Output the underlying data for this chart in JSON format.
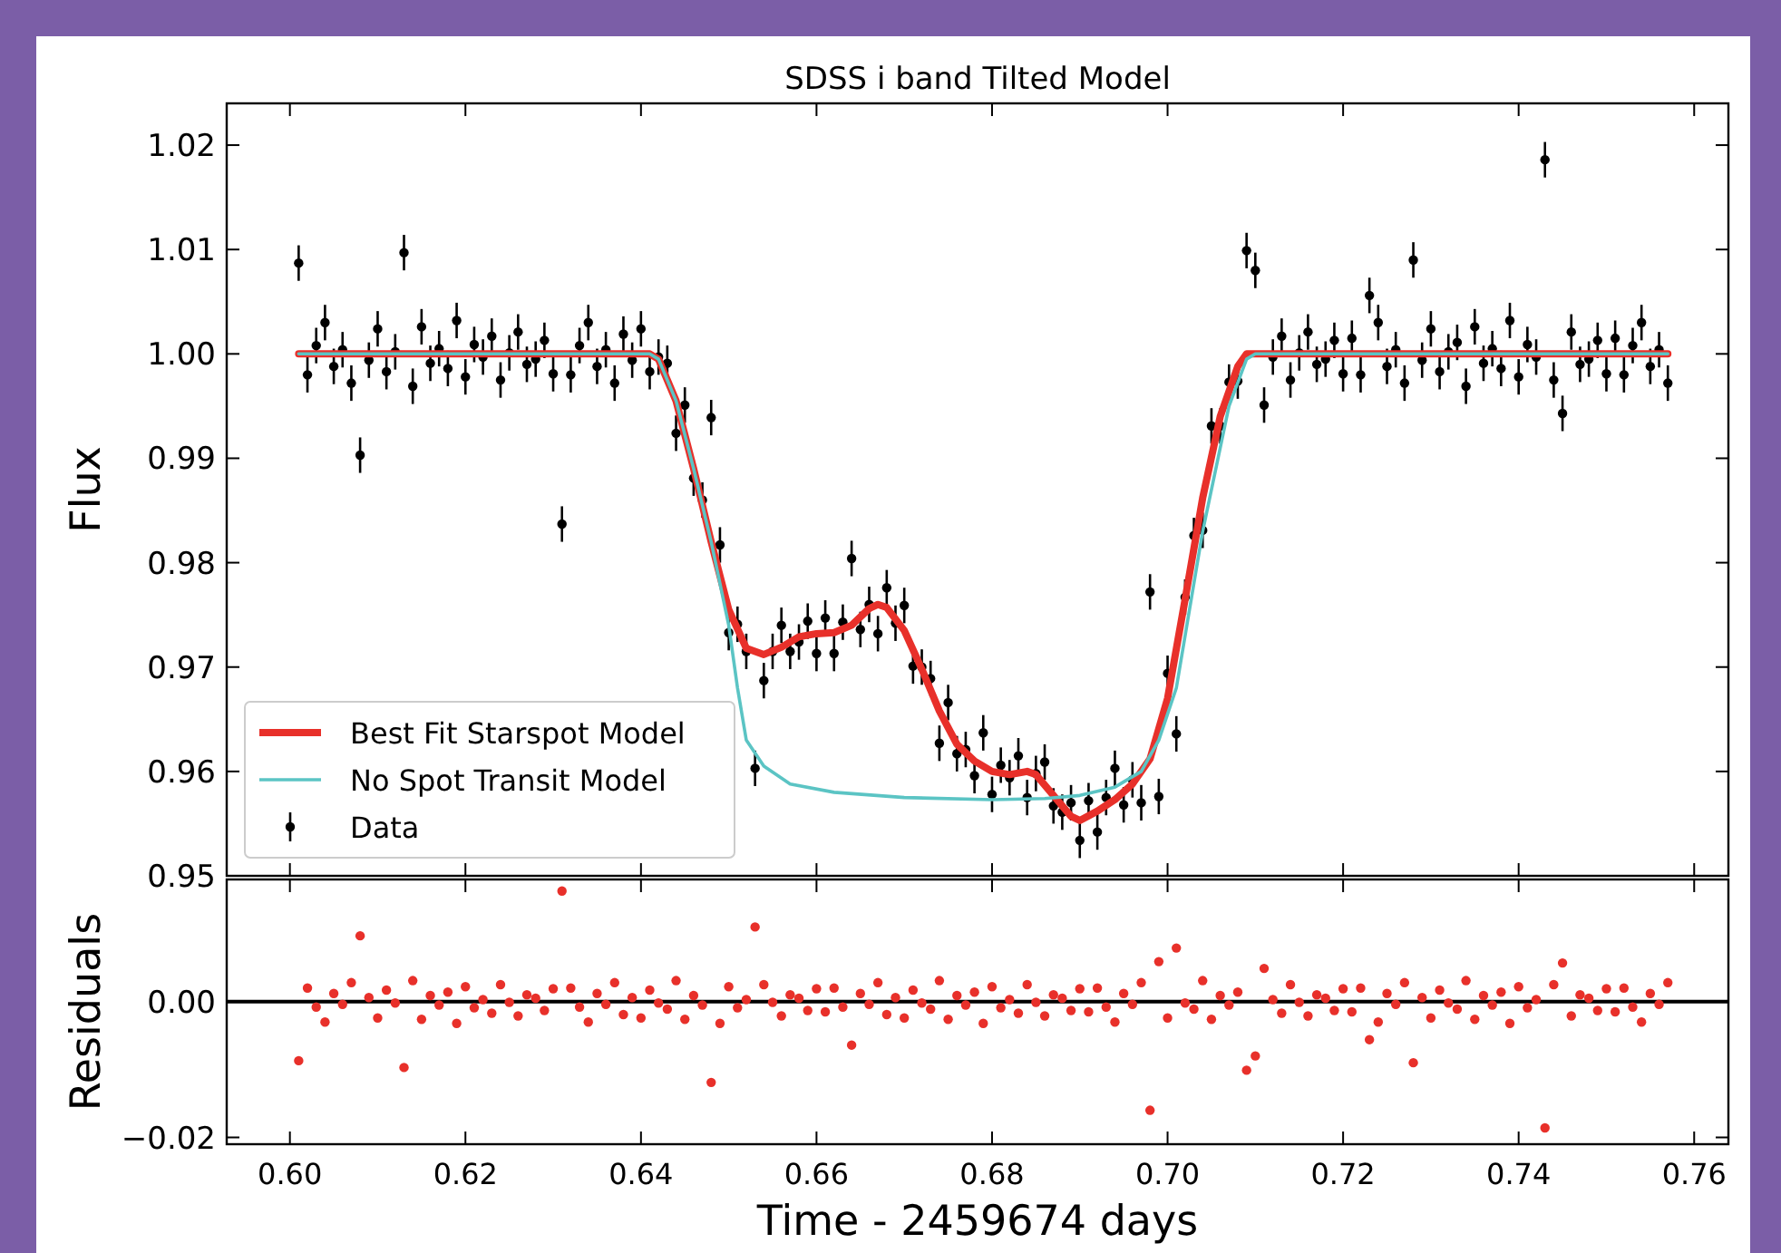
{
  "chart_data": [
    {
      "type": "scatter",
      "title": "SDSS i band Tilted Model",
      "ylabel": "Flux",
      "xlim": [
        0.5928,
        0.7639
      ],
      "ylim": [
        0.95,
        1.024
      ],
      "xticks": [
        0.6,
        0.62,
        0.64,
        0.66,
        0.68,
        0.7,
        0.72,
        0.74,
        0.76
      ],
      "yticks": [
        0.95,
        0.96,
        0.97,
        0.98,
        0.99,
        {
          "value": 1.0,
          "label": "1.00"
        },
        1.01,
        1.02
      ],
      "tick_labels": "y",
      "legend": "bottom left",
      "grid": false,
      "series": [
        {
          "name": "Data",
          "type": "scatter",
          "color": "#000000",
          "marker": "circle",
          "x": [
            0.601,
            0.602,
            0.603,
            0.604,
            0.605,
            0.606,
            0.607,
            0.608,
            0.609,
            0.61,
            0.611,
            0.612,
            0.613,
            0.614,
            0.615,
            0.616,
            0.617,
            0.618,
            0.619,
            0.62,
            0.621,
            0.622,
            0.623,
            0.624,
            0.625,
            0.626,
            0.627,
            0.628,
            0.629,
            0.63,
            0.631,
            0.632,
            0.633,
            0.634,
            0.635,
            0.636,
            0.637,
            0.638,
            0.639,
            0.64,
            0.641,
            0.642,
            0.643,
            0.644,
            0.645,
            0.646,
            0.647,
            0.648,
            0.649,
            0.65,
            0.651,
            0.652,
            0.653,
            0.654,
            0.655,
            0.656,
            0.657,
            0.658,
            0.659,
            0.66,
            0.661,
            0.662,
            0.663,
            0.664,
            0.665,
            0.666,
            0.667,
            0.668,
            0.669,
            0.67,
            0.671,
            0.672,
            0.673,
            0.674,
            0.675,
            0.676,
            0.677,
            0.678,
            0.679,
            0.68,
            0.681,
            0.682,
            0.683,
            0.684,
            0.685,
            0.686,
            0.687,
            0.688,
            0.689,
            0.69,
            0.691,
            0.692,
            0.693,
            0.694,
            0.695,
            0.696,
            0.697,
            0.698,
            0.699,
            0.7,
            0.701,
            0.702,
            0.703,
            0.704,
            0.705,
            0.706,
            0.707,
            0.708,
            0.709,
            0.71,
            0.711,
            0.712,
            0.713,
            0.714,
            0.715,
            0.716,
            0.717,
            0.718,
            0.719,
            0.72,
            0.721,
            0.722,
            0.723,
            0.724,
            0.725,
            0.726,
            0.727,
            0.728,
            0.729,
            0.73,
            0.731,
            0.732,
            0.733,
            0.734,
            0.735,
            0.736,
            0.737,
            0.738,
            0.739,
            0.74,
            0.741,
            0.742,
            0.743,
            0.744,
            0.745,
            0.746,
            0.747,
            0.748,
            0.749,
            0.75,
            0.751,
            0.752,
            0.753,
            0.754,
            0.755,
            0.756,
            0.757
          ],
          "values": [
            1.0087,
            0.998,
            1.0008,
            1.003,
            0.9988,
            1.0004,
            0.9972,
            0.9903,
            0.9994,
            1.0024,
            0.9983,
            1.0002,
            1.0097,
            0.9969,
            1.0026,
            0.9991,
            1.0005,
            0.9986,
            1.0032,
            0.9978,
            1.0009,
            0.9997,
            1.0017,
            0.9975,
            1.0001,
            1.0021,
            0.999,
            0.9995,
            1.0013,
            0.9981,
            0.9837,
            0.998,
            1.0008,
            1.003,
            0.9988,
            1.0004,
            0.9972,
            1.0019,
            0.9994,
            1.0024,
            0.9983,
            0.9997,
            0.9991,
            0.9924,
            0.9951,
            0.9881,
            0.986,
            0.9939,
            0.9817,
            0.9733,
            0.9741,
            0.9715,
            0.9603,
            0.9687,
            0.9715,
            0.974,
            0.9715,
            0.9724,
            0.9744,
            0.9713,
            0.9747,
            0.9713,
            0.9743,
            0.9804,
            0.9736,
            0.976,
            0.9732,
            0.9776,
            0.9742,
            0.9759,
            0.9701,
            0.97,
            0.9689,
            0.9627,
            0.9666,
            0.9617,
            0.9621,
            0.9596,
            0.9637,
            0.9578,
            0.9606,
            0.9594,
            0.9615,
            0.9575,
            0.9598,
            0.9609,
            0.9567,
            0.9561,
            0.957,
            0.9534,
            0.9572,
            0.9542,
            0.9575,
            0.9603,
            0.9568,
            0.9592,
            0.957,
            0.9772,
            0.9576,
            0.9694,
            0.9636,
            0.9767,
            0.9826,
            0.9831,
            0.9931,
            0.9931,
            0.9973,
            0.9974,
            1.0099,
            1.008,
            0.9951,
            0.9997,
            1.0017,
            0.9975,
            1.0001,
            1.0021,
            0.999,
            0.9995,
            1.0013,
            0.9981,
            1.0015,
            0.998,
            1.0056,
            1.003,
            0.9988,
            1.0004,
            0.9972,
            1.009,
            0.9994,
            1.0024,
            0.9983,
            1.0002,
            1.0011,
            0.9969,
            1.0026,
            0.9991,
            1.0005,
            0.9986,
            1.0032,
            0.9978,
            1.0009,
            0.9997,
            1.0186,
            0.9975,
            0.9943,
            1.0021,
            0.999,
            0.9995,
            1.0013,
            0.9981,
            1.0015,
            0.998,
            1.0008,
            1.003,
            0.9988,
            1.0004,
            0.9972
          ],
          "errors": [
            0.0017,
            0.0017,
            0.0017,
            0.0017,
            0.0017,
            0.0017,
            0.0017,
            0.0017,
            0.0017,
            0.0017,
            0.0017,
            0.0017,
            0.0017,
            0.0017,
            0.0017,
            0.0017,
            0.0017,
            0.0017,
            0.0017,
            0.0017,
            0.0017,
            0.0017,
            0.0017,
            0.0017,
            0.0017,
            0.0017,
            0.0017,
            0.0017,
            0.0017,
            0.0017,
            0.0017,
            0.0017,
            0.0017,
            0.0017,
            0.0017,
            0.0017,
            0.0017,
            0.0017,
            0.0017,
            0.0017,
            0.0017,
            0.0017,
            0.0017,
            0.0017,
            0.0017,
            0.0017,
            0.0017,
            0.0017,
            0.0017,
            0.0017,
            0.0017,
            0.0017,
            0.0017,
            0.0017,
            0.0017,
            0.0017,
            0.0017,
            0.0017,
            0.0017,
            0.0017,
            0.0017,
            0.0017,
            0.0017,
            0.0017,
            0.0017,
            0.0017,
            0.0017,
            0.0017,
            0.0017,
            0.0017,
            0.0017,
            0.0017,
            0.0017,
            0.0017,
            0.0017,
            0.0017,
            0.0017,
            0.0017,
            0.0017,
            0.0017,
            0.0017,
            0.0017,
            0.0017,
            0.0017,
            0.0017,
            0.0017,
            0.0017,
            0.0017,
            0.0017,
            0.0017,
            0.0017,
            0.0017,
            0.0017,
            0.0017,
            0.0017,
            0.0017,
            0.0017,
            0.0017,
            0.0017,
            0.0017,
            0.0017,
            0.0017,
            0.0017,
            0.0017,
            0.0017,
            0.0017,
            0.0017,
            0.0017,
            0.0017,
            0.0017,
            0.0017,
            0.0017,
            0.0017,
            0.0017,
            0.0017,
            0.0017,
            0.0017,
            0.0017,
            0.0017,
            0.0017,
            0.0017,
            0.0017,
            0.0017,
            0.0017,
            0.0017,
            0.0017,
            0.0017,
            0.0017,
            0.0017,
            0.0017,
            0.0017,
            0.0017,
            0.0017,
            0.0017,
            0.0017,
            0.0017,
            0.0017,
            0.0017,
            0.0017,
            0.0017,
            0.0017,
            0.0017,
            0.0017,
            0.0017,
            0.0017,
            0.0017,
            0.0017,
            0.0017,
            0.0017,
            0.0017,
            0.0017,
            0.0017,
            0.0017,
            0.0017,
            0.0017,
            0.0017,
            0.0017
          ]
        },
        {
          "name": "Best Fit Starspot Model",
          "type": "line",
          "color": "#e8302a",
          "marker": "none",
          "x": [
            0.601,
            0.641,
            0.642,
            0.644,
            0.646,
            0.648,
            0.65,
            0.652,
            0.654,
            0.656,
            0.658,
            0.66,
            0.662,
            0.664,
            0.666,
            0.667,
            0.668,
            0.67,
            0.672,
            0.674,
            0.676,
            0.678,
            0.68,
            0.682,
            0.684,
            0.685,
            0.687,
            0.689,
            0.69,
            0.692,
            0.694,
            0.696,
            0.698,
            0.7,
            0.702,
            0.704,
            0.706,
            0.708,
            0.709,
            0.757
          ],
          "values": [
            1.0,
            1.0,
            0.9995,
            0.9955,
            0.989,
            0.982,
            0.9755,
            0.9718,
            0.9712,
            0.9719,
            0.9729,
            0.9732,
            0.9733,
            0.974,
            0.9756,
            0.976,
            0.9757,
            0.9735,
            0.9698,
            0.9658,
            0.9626,
            0.961,
            0.96,
            0.9597,
            0.96,
            0.9597,
            0.9577,
            0.9557,
            0.9553,
            0.9562,
            0.9573,
            0.9588,
            0.9612,
            0.967,
            0.9765,
            0.9862,
            0.994,
            0.9988,
            1.0,
            1.0
          ]
        },
        {
          "name": "No Spot Transit Model",
          "type": "line",
          "color": "#5bc4c4",
          "marker": "none",
          "x": [
            0.601,
            0.641,
            0.642,
            0.644,
            0.646,
            0.648,
            0.65,
            0.651,
            0.652,
            0.654,
            0.657,
            0.662,
            0.67,
            0.68,
            0.686,
            0.69,
            0.694,
            0.697,
            0.699,
            0.701,
            0.704,
            0.707,
            0.709,
            0.71,
            0.757
          ],
          "values": [
            1.0,
            1.0,
            0.9995,
            0.9955,
            0.989,
            0.982,
            0.974,
            0.968,
            0.963,
            0.9605,
            0.9588,
            0.958,
            0.9575,
            0.9573,
            0.9574,
            0.9577,
            0.9585,
            0.96,
            0.963,
            0.968,
            0.983,
            0.995,
            0.9995,
            1.0,
            1.0
          ]
        }
      ]
    },
    {
      "type": "scatter",
      "ylabel": "Residuals",
      "xlabel": "Time - 2459674 days",
      "xlim": [
        0.5928,
        0.7639
      ],
      "ylim": [
        -0.021,
        0.018
      ],
      "xticks": [
        {
          "value": 0.6,
          "label": "0.60"
        },
        0.62,
        0.64,
        0.66,
        0.68,
        {
          "value": 0.7,
          "label": "0.70"
        },
        0.72,
        0.74,
        0.76
      ],
      "yticks": [
        {
          "value": -0.02,
          "label": "−0.02"
        },
        {
          "value": 0,
          "label": "0.00"
        }
      ],
      "marker": "circle",
      "grid": false,
      "ref_lines": [
        {
          "axis": "y",
          "value": 0,
          "color": "#000000"
        }
      ],
      "series": [
        {
          "color": "#e8302a",
          "x": [
            0.601,
            0.602,
            0.603,
            0.604,
            0.605,
            0.606,
            0.607,
            0.608,
            0.609,
            0.61,
            0.611,
            0.612,
            0.613,
            0.614,
            0.615,
            0.616,
            0.617,
            0.618,
            0.619,
            0.62,
            0.621,
            0.622,
            0.623,
            0.624,
            0.625,
            0.626,
            0.627,
            0.628,
            0.629,
            0.63,
            0.631,
            0.632,
            0.633,
            0.634,
            0.635,
            0.636,
            0.637,
            0.638,
            0.639,
            0.64,
            0.641,
            0.642,
            0.643,
            0.644,
            0.645,
            0.646,
            0.647,
            0.648,
            0.649,
            0.65,
            0.651,
            0.652,
            0.653,
            0.654,
            0.655,
            0.656,
            0.657,
            0.658,
            0.659,
            0.66,
            0.661,
            0.662,
            0.663,
            0.664,
            0.665,
            0.666,
            0.667,
            0.668,
            0.669,
            0.67,
            0.671,
            0.672,
            0.673,
            0.674,
            0.675,
            0.676,
            0.677,
            0.678,
            0.679,
            0.68,
            0.681,
            0.682,
            0.683,
            0.684,
            0.685,
            0.686,
            0.687,
            0.688,
            0.689,
            0.69,
            0.691,
            0.692,
            0.693,
            0.694,
            0.695,
            0.696,
            0.697,
            0.698,
            0.699,
            0.7,
            0.701,
            0.702,
            0.703,
            0.704,
            0.705,
            0.706,
            0.707,
            0.708,
            0.709,
            0.71,
            0.711,
            0.712,
            0.713,
            0.714,
            0.715,
            0.716,
            0.717,
            0.718,
            0.719,
            0.72,
            0.721,
            0.722,
            0.723,
            0.724,
            0.725,
            0.726,
            0.727,
            0.728,
            0.729,
            0.73,
            0.731,
            0.732,
            0.733,
            0.734,
            0.735,
            0.736,
            0.737,
            0.738,
            0.739,
            0.74,
            0.741,
            0.742,
            0.743,
            0.744,
            0.745,
            0.746,
            0.747,
            0.748,
            0.749,
            0.75,
            0.751,
            0.752,
            0.753,
            0.754,
            0.755,
            0.756,
            0.757
          ],
          "values": [
            -0.0087,
            0.002,
            -0.0008,
            -0.003,
            0.0012,
            -0.0004,
            0.0028,
            0.0097,
            0.0006,
            -0.0024,
            0.0017,
            -0.0002,
            -0.0097,
            0.0031,
            -0.0026,
            0.0009,
            -0.0005,
            0.0014,
            -0.0032,
            0.0022,
            -0.0009,
            0.0003,
            -0.0017,
            0.0025,
            -0.0001,
            -0.0021,
            0.001,
            0.0005,
            -0.0013,
            0.0019,
            0.0163,
            0.002,
            -0.0008,
            -0.003,
            0.0012,
            -0.0004,
            0.0028,
            -0.0019,
            0.0006,
            -0.0024,
            0.0017,
            -0.0002,
            -0.0011,
            0.0031,
            -0.0026,
            0.0009,
            -0.0005,
            -0.0119,
            -0.0032,
            0.0022,
            -0.0009,
            0.0003,
            0.011,
            0.0025,
            -0.0001,
            -0.0021,
            0.001,
            0.0005,
            -0.0013,
            0.0019,
            -0.0015,
            0.002,
            -0.0008,
            -0.0064,
            0.0012,
            -0.0004,
            0.0028,
            -0.0019,
            0.0006,
            -0.0024,
            0.0017,
            -0.0002,
            -0.0011,
            0.0031,
            -0.0026,
            0.0009,
            -0.0005,
            0.0014,
            -0.0032,
            0.0022,
            -0.0009,
            0.0003,
            -0.0017,
            0.0025,
            -0.0001,
            -0.0021,
            0.001,
            0.0005,
            -0.0013,
            0.0019,
            -0.0015,
            0.002,
            -0.0008,
            -0.003,
            0.0012,
            -0.0004,
            0.0028,
            -0.016,
            0.0059,
            -0.0024,
            0.0079,
            -0.0002,
            -0.0011,
            0.0031,
            -0.0026,
            0.0009,
            -0.0005,
            0.0014,
            -0.0101,
            -0.008,
            0.0049,
            0.0003,
            -0.0017,
            0.0025,
            -0.0001,
            -0.0021,
            0.001,
            0.0005,
            -0.0013,
            0.0019,
            -0.0015,
            0.002,
            -0.0056,
            -0.003,
            0.0012,
            -0.0004,
            0.0028,
            -0.009,
            0.0006,
            -0.0024,
            0.0017,
            -0.0002,
            -0.0011,
            0.0031,
            -0.0026,
            0.0009,
            -0.0005,
            0.0014,
            -0.0032,
            0.0022,
            -0.0009,
            0.0003,
            -0.0186,
            0.0025,
            0.0057,
            -0.0021,
            0.001,
            0.0005,
            -0.0013,
            0.0019,
            -0.0015,
            0.002,
            -0.0008,
            -0.003,
            0.0012,
            -0.0004,
            0.0028
          ]
        }
      ]
    }
  ]
}
